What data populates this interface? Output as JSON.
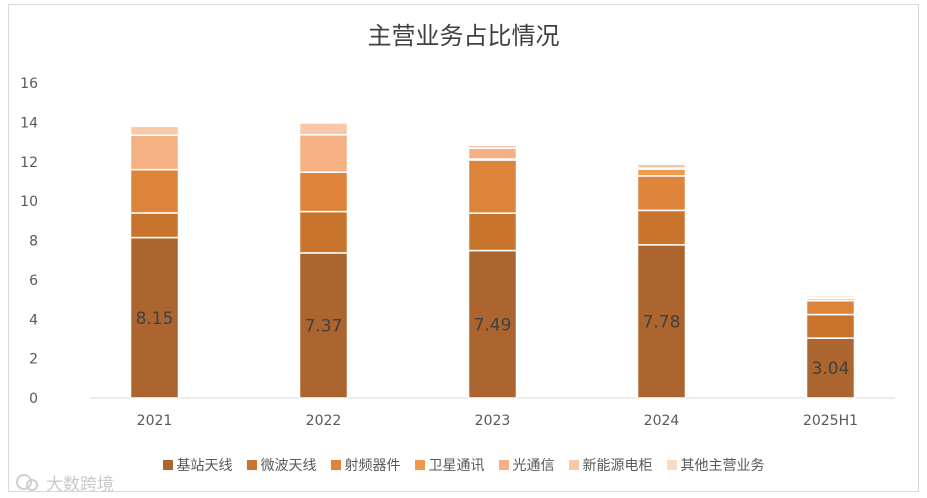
{
  "chart_data": {
    "type": "bar",
    "stacked": true,
    "title": "主营业务占比情况",
    "categories": [
      "2021",
      "2022",
      "2023",
      "2024",
      "2025H1"
    ],
    "ylim": [
      0,
      16
    ],
    "yticks": [
      0,
      2,
      4,
      6,
      8,
      10,
      12,
      14,
      16
    ],
    "grid": false,
    "legend_position": "bottom",
    "series": [
      {
        "name": "基站天线",
        "color": "#ad6530",
        "values": [
          8.15,
          7.37,
          7.49,
          7.78,
          3.04
        ]
      },
      {
        "name": "微波天线",
        "color": "#c8742d",
        "values": [
          1.25,
          2.1,
          1.9,
          1.75,
          1.2
        ]
      },
      {
        "name": "射频器件",
        "color": "#de843a",
        "values": [
          2.2,
          2.0,
          2.7,
          1.75,
          0.7
        ]
      },
      {
        "name": "卫星通讯",
        "color": "#ee9a4d",
        "values": [
          0.0,
          0.0,
          0.05,
          0.35,
          0.1
        ]
      },
      {
        "name": "光通信",
        "color": "#f5b183",
        "values": [
          1.75,
          1.9,
          0.55,
          0.05,
          0.05
        ]
      },
      {
        "name": "新能源电柜",
        "color": "#f8c8a8",
        "values": [
          0.45,
          0.6,
          0.15,
          0.2,
          0.1
        ]
      },
      {
        "name": "其他主营业务",
        "color": "#fbd9c4",
        "values": [
          0.0,
          0.0,
          0.05,
          0.05,
          0.02
        ]
      }
    ],
    "data_labels": {
      "series": "基站天线",
      "values": [
        "8.15",
        "7.37",
        "7.49",
        "7.78",
        "3.04"
      ]
    }
  },
  "watermark": {
    "text": "大数跨境",
    "icon": "chat-bubble-icon"
  }
}
